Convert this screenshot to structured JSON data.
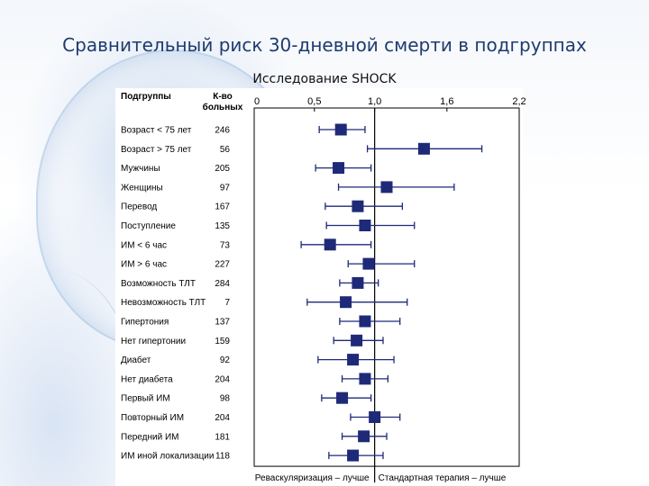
{
  "slide": {
    "title": "Сравнительный риск 30-дневной смерти в подгруппах",
    "subtitle": "Исследование SHOCK"
  },
  "chart_data": {
    "type": "forest",
    "column_headers": {
      "subgroups": "Подгруппы",
      "count": "К-во\nбольных"
    },
    "x_ticks": [
      "0",
      "0,5",
      "1,0",
      "1,6",
      "2,2"
    ],
    "x_tick_values": [
      0,
      0.5,
      1.0,
      1.6,
      2.2
    ],
    "xlim": [
      0,
      2.2
    ],
    "reference_line": 1.0,
    "footer_left": "Реваскуляризация – лучше",
    "footer_right": "Стандартная терапия – лучше",
    "rows": [
      {
        "label": "Возраст < 75 лет",
        "n": "246",
        "est": 0.72,
        "lo": 0.54,
        "hi": 0.92
      },
      {
        "label": "Возраст > 75 лет",
        "n": "56",
        "est": 1.41,
        "lo": 0.94,
        "hi": 1.89
      },
      {
        "label": "Мужчины",
        "n": "205",
        "est": 0.7,
        "lo": 0.51,
        "hi": 0.97
      },
      {
        "label": "Женщины",
        "n": "97",
        "est": 1.1,
        "lo": 0.7,
        "hi": 1.66
      },
      {
        "label": "Перевод",
        "n": "167",
        "est": 0.86,
        "lo": 0.59,
        "hi": 1.23
      },
      {
        "label": "Поступление",
        "n": "135",
        "est": 0.92,
        "lo": 0.6,
        "hi": 1.33
      },
      {
        "label": "ИМ < 6 час",
        "n": "73",
        "est": 0.63,
        "lo": 0.39,
        "hi": 0.97
      },
      {
        "label": "ИМ > 6 час",
        "n": "227",
        "est": 0.95,
        "lo": 0.78,
        "hi": 1.33
      },
      {
        "label": "Возможность ТЛТ",
        "n": "284",
        "est": 0.86,
        "lo": 0.71,
        "hi": 1.03
      },
      {
        "label": "Невозможность ТЛТ",
        "n": "7",
        "est": 0.76,
        "lo": 0.44,
        "hi": 1.27
      },
      {
        "label": "Гипертония",
        "n": "137",
        "est": 0.92,
        "lo": 0.71,
        "hi": 1.21
      },
      {
        "label": "Нет гипертонии",
        "n": "159",
        "est": 0.85,
        "lo": 0.66,
        "hi": 1.07
      },
      {
        "label": "Диабет",
        "n": "92",
        "est": 0.82,
        "lo": 0.53,
        "hi": 1.16
      },
      {
        "label": "Нет диабета",
        "n": "204",
        "est": 0.92,
        "lo": 0.73,
        "hi": 1.11
      },
      {
        "label": "Первый ИМ",
        "n": "98",
        "est": 0.73,
        "lo": 0.56,
        "hi": 0.97
      },
      {
        "label": "Повторный ИМ",
        "n": "204",
        "est": 1.0,
        "lo": 0.8,
        "hi": 1.21
      },
      {
        "label": "Передний ИМ",
        "n": "181",
        "est": 0.91,
        "lo": 0.73,
        "hi": 1.1
      },
      {
        "label": "ИМ иной локализации",
        "n": "118",
        "est": 0.82,
        "lo": 0.62,
        "hi": 1.07
      }
    ],
    "colors": {
      "marker": "#1e2a78",
      "line": "#1e2a78",
      "axis": "#000000"
    }
  }
}
